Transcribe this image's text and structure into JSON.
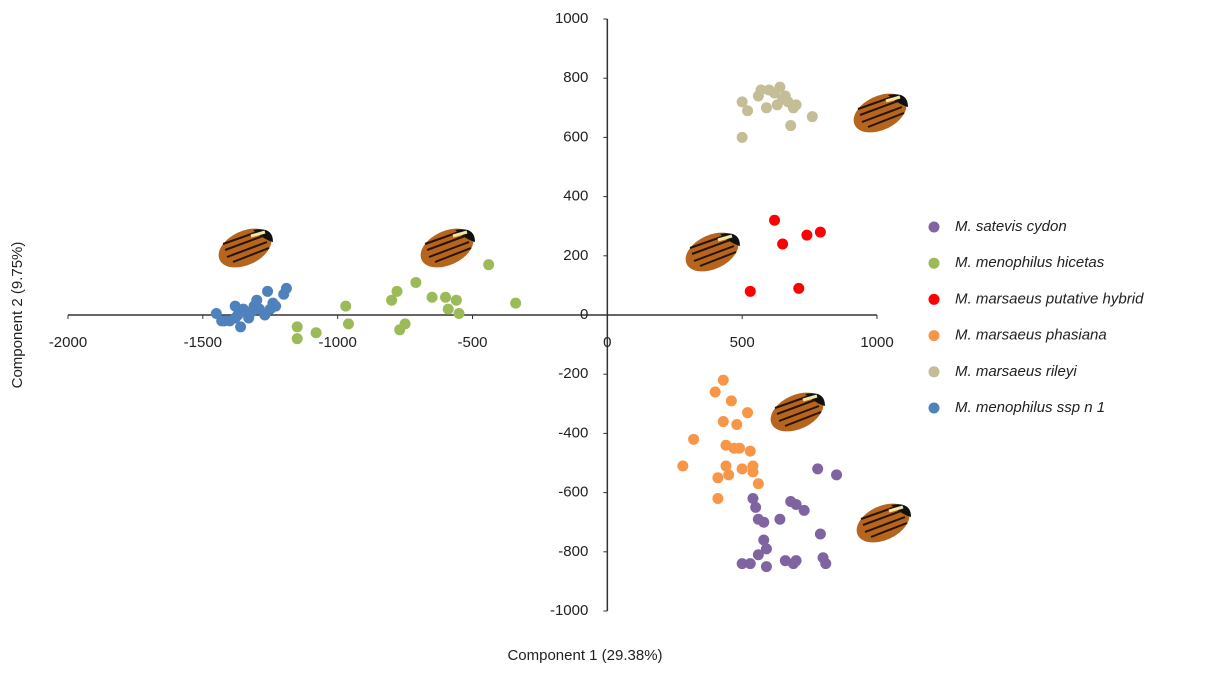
{
  "chart_data": {
    "type": "scatter",
    "x_label": "Component 1 (29.38%)",
    "y_label": "Component 2 (9.75%)",
    "xlim": [
      -2000,
      1000
    ],
    "xticks": [
      -2000,
      -1500,
      -1000,
      -500,
      0,
      500,
      1000
    ],
    "ylim": [
      -1000,
      1000
    ],
    "yticks": [
      -1000,
      -800,
      -600,
      -400,
      -200,
      0,
      200,
      400,
      600,
      800,
      1000
    ],
    "grid": false,
    "legend": "right",
    "series": [
      {
        "name": "M. satevis cydon",
        "color": "#8064a2",
        "x": [
          500,
          530,
          540,
          550,
          560,
          580,
          580,
          590,
          590,
          640,
          660,
          680,
          690,
          700,
          730,
          780,
          790,
          800,
          810,
          850,
          700,
          560
        ],
        "values": [
          -840,
          -840,
          -620,
          -650,
          -690,
          -700,
          -760,
          -790,
          -850,
          -690,
          -830,
          -630,
          -840,
          -640,
          -660,
          -520,
          -740,
          -820,
          -840,
          -540,
          -830,
          -810
        ]
      },
      {
        "name": "M. menophilus hicetas",
        "color": "#9bbb59",
        "x": [
          -1150,
          -1150,
          -1080,
          -970,
          -960,
          -800,
          -780,
          -770,
          -750,
          -710,
          -650,
          -600,
          -590,
          -560,
          -550,
          -440,
          -340
        ],
        "values": [
          -40,
          -80,
          -60,
          30,
          -30,
          50,
          80,
          -50,
          -30,
          110,
          60,
          60,
          20,
          50,
          5,
          170,
          40
        ]
      },
      {
        "name": "M. marsaeus putative hybrid",
        "color": "#ff0000",
        "x": [
          530,
          620,
          650,
          740,
          790,
          710
        ],
        "values": [
          80,
          320,
          240,
          270,
          280,
          90
        ]
      },
      {
        "name": "M. marsaeus phasiana",
        "color": "#f79646",
        "x": [
          280,
          320,
          400,
          410,
          410,
          430,
          430,
          440,
          440,
          460,
          470,
          480,
          490,
          500,
          520,
          530,
          540,
          540,
          560,
          450
        ],
        "values": [
          -510,
          -420,
          -260,
          -550,
          -620,
          -220,
          -360,
          -440,
          -510,
          -290,
          -450,
          -370,
          -450,
          -520,
          -330,
          -460,
          -510,
          -530,
          -570,
          -540
        ]
      },
      {
        "name": "M. marsaeus rileyi",
        "color": "#c4bd97",
        "x": [
          500,
          500,
          520,
          560,
          570,
          590,
          600,
          630,
          640,
          650,
          660,
          670,
          680,
          690,
          700,
          760,
          620
        ],
        "values": [
          600,
          720,
          690,
          740,
          760,
          700,
          760,
          710,
          770,
          730,
          740,
          720,
          640,
          700,
          710,
          670,
          750
        ]
      },
      {
        "name": "M. menophilus ssp n 1",
        "color": "#4f81bd",
        "x": [
          -1450,
          -1430,
          -1400,
          -1380,
          -1370,
          -1360,
          -1350,
          -1340,
          -1330,
          -1310,
          -1300,
          -1290,
          -1270,
          -1250,
          -1240,
          -1230,
          -1260,
          -1200,
          -1190,
          -1320,
          -1380,
          -1420
        ],
        "values": [
          5,
          -20,
          -20,
          30,
          0,
          -40,
          20,
          10,
          -10,
          30,
          50,
          20,
          0,
          20,
          40,
          30,
          80,
          70,
          90,
          10,
          -10,
          -20
        ]
      }
    ]
  }
}
